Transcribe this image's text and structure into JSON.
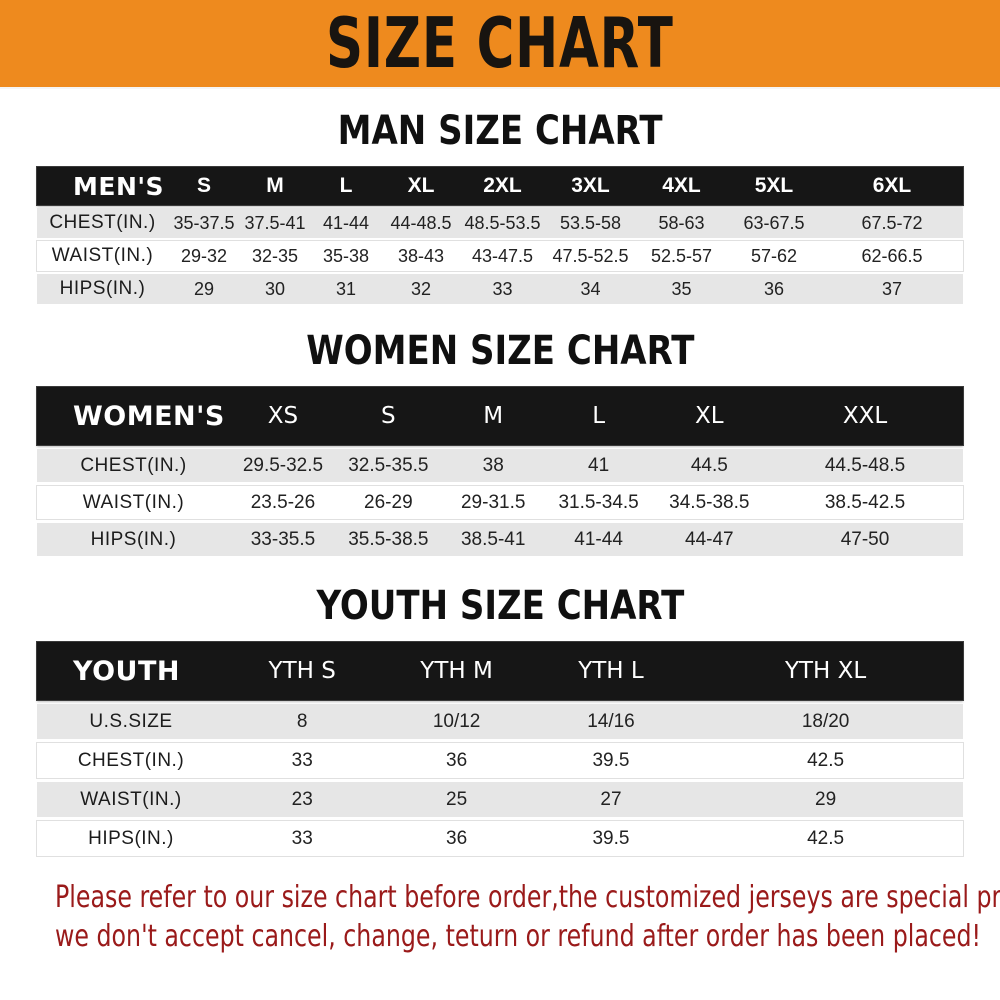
{
  "banner": {
    "title": "SIZE CHART"
  },
  "colors": {
    "banner_bg": "#ee8a1e",
    "header_bg": "#161616",
    "row_shade": "#e6e6e6",
    "footer_color": "#9a1a1a"
  },
  "man_chart": {
    "title": "MAN SIZE CHART",
    "header_label": "MEN'S",
    "columns": [
      "S",
      "M",
      "L",
      "XL",
      "2XL",
      "3XL",
      "4XL",
      "5XL",
      "6XL"
    ],
    "rows": [
      {
        "label": "CHEST(IN.)",
        "values": [
          "35-37.5",
          "37.5-41",
          "41-44",
          "44-48.5",
          "48.5-53.5",
          "53.5-58",
          "58-63",
          "63-67.5",
          "67.5-72"
        ]
      },
      {
        "label": "WAIST(IN.)",
        "values": [
          "29-32",
          "32-35",
          "35-38",
          "38-43",
          "43-47.5",
          "47.5-52.5",
          "52.5-57",
          "57-62",
          "62-66.5"
        ]
      },
      {
        "label": "HIPS(IN.)",
        "values": [
          "29",
          "30",
          "31",
          "32",
          "33",
          "34",
          "35",
          "36",
          "37"
        ]
      }
    ]
  },
  "women_chart": {
    "title": "WOMEN SIZE CHART",
    "header_label": "WOMEN'S",
    "columns": [
      "XS",
      "S",
      "M",
      "L",
      "XL",
      "XXL"
    ],
    "rows": [
      {
        "label": "CHEST(IN.)",
        "values": [
          "29.5-32.5",
          "32.5-35.5",
          "38",
          "41",
          "44.5",
          "44.5-48.5"
        ]
      },
      {
        "label": "WAIST(IN.)",
        "values": [
          "23.5-26",
          "26-29",
          "29-31.5",
          "31.5-34.5",
          "34.5-38.5",
          "38.5-42.5"
        ]
      },
      {
        "label": "HIPS(IN.)",
        "values": [
          "33-35.5",
          "35.5-38.5",
          "38.5-41",
          "41-44",
          "44-47",
          "47-50"
        ]
      }
    ]
  },
  "youth_chart": {
    "title": "YOUTH SIZE CHART",
    "header_label": "YOUTH",
    "columns": [
      "YTH S",
      "YTH M",
      "YTH L",
      "YTH XL"
    ],
    "rows": [
      {
        "label": "U.S.SIZE",
        "values": [
          "8",
          "10/12",
          "14/16",
          "18/20"
        ]
      },
      {
        "label": "CHEST(IN.)",
        "values": [
          "33",
          "36",
          "39.5",
          "42.5"
        ]
      },
      {
        "label": "WAIST(IN.)",
        "values": [
          "23",
          "25",
          "27",
          "29"
        ]
      },
      {
        "label": "HIPS(IN.)",
        "values": [
          "33",
          "36",
          "39.5",
          "42.5"
        ]
      }
    ]
  },
  "footer": {
    "line1": "Please refer to our size chart before order,the customized jerseys are special products,",
    "line2": "we don't accept cancel, change, teturn or refund after order has been placed!"
  }
}
